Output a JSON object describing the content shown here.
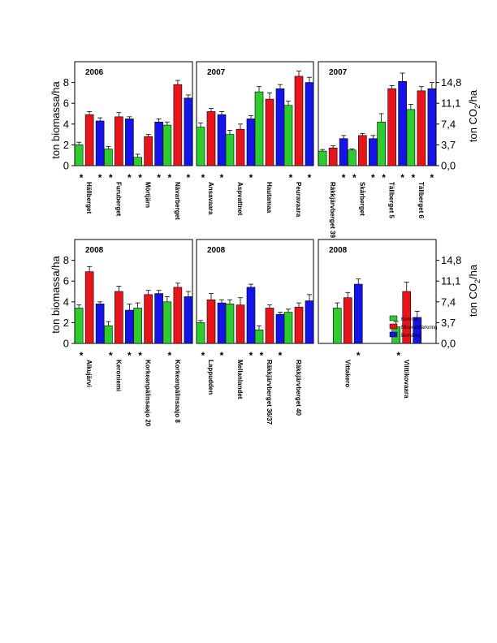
{
  "colors": {
    "kontroll": "#2ecc2e",
    "mineral": "#e8141b",
    "bio": "#1414e6",
    "frame": "#000000"
  },
  "axis_labels": {
    "left": "ton biomassa/ha",
    "right_main": "ton CO",
    "right_sub": "2",
    "right_tail": "/ha"
  },
  "legend": {
    "kontroll": "Kontroll",
    "mineral": "Mineralmärkning",
    "bio": "Bionäring"
  },
  "chart_data": {
    "type": "bar",
    "ylim": [
      0,
      10
    ],
    "y_ticks": [
      0,
      2,
      4,
      6,
      8
    ],
    "co2_ticks": [
      "0,0",
      "3,7",
      "7,4",
      "11,1",
      "14,8"
    ],
    "panels": [
      {
        "label": "2006",
        "categories": [
          "Hällberget",
          "Furuberget",
          "Mörtjärn",
          "Nävarberget"
        ],
        "star_left": [
          true,
          true,
          true,
          true
        ],
        "star_right": [
          true,
          true,
          true,
          true
        ],
        "series": [
          {
            "name": "Kontroll",
            "values": [
              2.0,
              1.6,
              0.8,
              3.9
            ],
            "err": [
              0.25,
              0.25,
              0.3,
              0.3
            ]
          },
          {
            "name": "Mineralmärkning",
            "values": [
              4.9,
              4.7,
              2.8,
              7.8
            ],
            "err": [
              0.3,
              0.4,
              0.2,
              0.4
            ]
          },
          {
            "name": "Bionäring",
            "values": [
              4.3,
              4.5,
              4.2,
              6.5
            ],
            "err": [
              0.3,
              0.2,
              0.3,
              0.3
            ]
          }
        ]
      },
      {
        "label": "2007",
        "categories": [
          "Ansavaara",
          "Aspvattnet",
          "Hautamaa",
          "Peuravaara"
        ],
        "star_left": [
          true,
          false,
          false,
          true
        ],
        "star_right": [
          true,
          true,
          false,
          true
        ],
        "series": [
          {
            "name": "Kontroll",
            "values": [
              3.7,
              3.0,
              7.1,
              5.8
            ],
            "err": [
              0.4,
              0.4,
              0.5,
              0.4
            ]
          },
          {
            "name": "Mineralmärkning",
            "values": [
              5.2,
              3.5,
              6.4,
              8.6
            ],
            "err": [
              0.3,
              0.5,
              0.6,
              0.5
            ]
          },
          {
            "name": "Bionäring",
            "values": [
              4.9,
              4.5,
              7.4,
              8.0
            ],
            "err": [
              0.3,
              0.3,
              0.4,
              0.5
            ]
          }
        ]
      },
      {
        "label": "2007",
        "categories": [
          "Räkkjärvberget 39",
          "Skårberget",
          "Tällberget 5",
          "Tällberget 6"
        ],
        "star_left": [
          false,
          true,
          true,
          true
        ],
        "star_right": [
          true,
          true,
          true,
          true
        ],
        "series": [
          {
            "name": "Kontroll",
            "values": [
              1.4,
              1.5,
              4.2,
              5.4
            ],
            "err": [
              0.15,
              0.1,
              0.8,
              0.5
            ]
          },
          {
            "name": "Mineralmärkning",
            "values": [
              1.7,
              2.9,
              7.4,
              7.2
            ],
            "err": [
              0.2,
              0.2,
              0.3,
              0.4
            ]
          },
          {
            "name": "Bionäring",
            "values": [
              2.6,
              2.6,
              8.1,
              7.4
            ],
            "err": [
              0.3,
              0.3,
              0.8,
              0.6
            ]
          }
        ]
      },
      {
        "label": "2008",
        "categories": [
          "Alkujärvi",
          "Keroniemi",
          "Korkeanpälinsaajo 20",
          "Korkeanpälinsaajo 8"
        ],
        "star_left": [
          true,
          true,
          true,
          true
        ],
        "star_right": [
          false,
          true,
          false,
          false
        ],
        "series": [
          {
            "name": "Kontroll",
            "values": [
              3.4,
              1.7,
              3.4,
              4.0
            ],
            "err": [
              0.3,
              0.4,
              0.5,
              0.5
            ]
          },
          {
            "name": "Mineralmärkning",
            "values": [
              6.9,
              5.0,
              4.7,
              5.4
            ],
            "err": [
              0.5,
              0.5,
              0.4,
              0.4
            ]
          },
          {
            "name": "Bionäring",
            "values": [
              3.8,
              3.2,
              4.8,
              4.5
            ],
            "err": [
              0.2,
              0.6,
              0.3,
              0.5
            ]
          }
        ]
      },
      {
        "label": "2008",
        "categories": [
          "Lappudden",
          "Mellanlandet",
          "Räkkjärvberget 36/37",
          "Räkkjärvberget 40"
        ],
        "star_left": [
          true,
          false,
          true,
          false
        ],
        "star_right": [
          true,
          true,
          true,
          false
        ],
        "series": [
          {
            "name": "Kontroll",
            "values": [
              2.0,
              3.8,
              1.3,
              3.0
            ],
            "err": [
              0.2,
              0.4,
              0.4,
              0.3
            ]
          },
          {
            "name": "Mineralmärkning",
            "values": [
              4.2,
              3.7,
              3.4,
              3.5
            ],
            "err": [
              0.6,
              0.7,
              0.3,
              0.4
            ]
          },
          {
            "name": "Bionäring",
            "values": [
              3.9,
              5.4,
              2.8,
              4.1
            ],
            "err": [
              0.3,
              0.3,
              0.2,
              0.6
            ]
          }
        ]
      },
      {
        "label": "2008",
        "categories": [
          "Vittakero",
          "Viittikovaara"
        ],
        "star_left": [
          false,
          true
        ],
        "star_right": [
          true,
          false
        ],
        "series": [
          {
            "name": "Kontroll",
            "values": [
              3.4,
              1.6
            ],
            "err": [
              0.5,
              0.5
            ]
          },
          {
            "name": "Mineralmärkning",
            "values": [
              4.4,
              5.0
            ],
            "err": [
              0.5,
              0.9
            ]
          },
          {
            "name": "Bionäring",
            "values": [
              5.7,
              2.5
            ],
            "err": [
              0.5,
              0.6
            ]
          }
        ]
      }
    ]
  }
}
